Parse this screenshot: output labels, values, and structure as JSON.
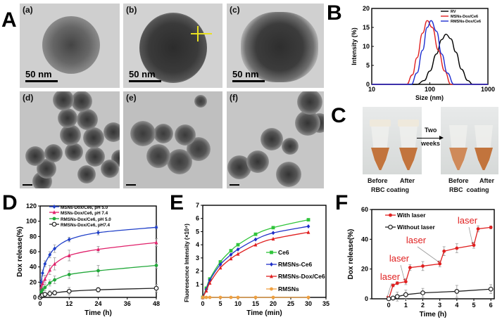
{
  "panels": {
    "A": {
      "label": "A",
      "images": [
        {
          "label": "(a)",
          "scale_bar": "50 nm"
        },
        {
          "label": "(b)",
          "scale_bar": "50 nm"
        },
        {
          "label": "(c)",
          "scale_bar": "50 nm"
        },
        {
          "label": "(d)"
        },
        {
          "label": "(e)"
        },
        {
          "label": "(f)"
        }
      ]
    },
    "B": {
      "label": "B"
    },
    "C": {
      "label": "C",
      "arrow_text_1": "Two",
      "arrow_text_2": "weeks",
      "left": {
        "before": "Before",
        "after": "After",
        "caption": "RBC coating"
      },
      "right": {
        "before": "Before",
        "after": "After",
        "caption": "RBC  coating"
      },
      "liquid_color": "#c2743d"
    },
    "D": {
      "label": "D"
    },
    "E": {
      "label": "E"
    },
    "F": {
      "label": "F"
    }
  },
  "chart_data": [
    {
      "id": "B",
      "type": "line",
      "xscale": "log",
      "xlabel": "Size (nm)",
      "ylabel": "Intensity (%)",
      "xlim": [
        10,
        1000
      ],
      "ylim": [
        0,
        20
      ],
      "xticks": [
        10,
        100,
        1000
      ],
      "yticks": [
        0,
        5,
        10,
        15,
        20
      ],
      "legend": "top-right",
      "series": [
        {
          "name": "RV",
          "color": "#000000",
          "x": [
            60,
            80,
            100,
            130,
            160,
            190,
            230,
            280,
            350,
            450,
            550
          ],
          "y": [
            0,
            1,
            3.5,
            8,
            11.8,
            13.2,
            12,
            8.5,
            4,
            1,
            0
          ]
        },
        {
          "name": "MSNs-Dox/Ce6",
          "color": "#e02020",
          "x": [
            40,
            50,
            60,
            75,
            90,
            110,
            140,
            180,
            230
          ],
          "y": [
            0,
            2.5,
            7,
            13.5,
            16.8,
            15,
            9,
            3.5,
            0
          ]
        },
        {
          "name": "RMSNs-Dox/Ce6",
          "color": "#1f2fd0",
          "x": [
            48,
            60,
            75,
            90,
            105,
            130,
            160,
            200,
            260
          ],
          "y": [
            0,
            3,
            9,
            15,
            16.8,
            14,
            8,
            3,
            0
          ]
        }
      ]
    },
    {
      "id": "D",
      "type": "line",
      "xlabel": "Time (h)",
      "ylabel": "Dox release(%)",
      "xlim": [
        0,
        48
      ],
      "ylim": [
        0,
        120
      ],
      "xticks": [
        0,
        12,
        24,
        36,
        48
      ],
      "yticks": [
        0,
        20,
        40,
        60,
        80,
        100,
        120
      ],
      "legend": "top-left",
      "x": [
        0,
        0.5,
        1,
        2,
        4,
        6,
        12,
        24,
        48
      ],
      "series": [
        {
          "name": "MSNs-Dox/Ce6, pH 5.0",
          "color": "#1f3fc8",
          "marker": "diamond",
          "values": [
            0,
            21,
            32,
            44,
            56,
            64,
            76,
            85,
            92
          ],
          "err": [
            0,
            3,
            4,
            4,
            4,
            5,
            3,
            3,
            2
          ]
        },
        {
          "name": "MSNs-Dox/Ce6, pH 7.4",
          "color": "#e0206a",
          "marker": "triangle",
          "values": [
            0,
            14,
            18,
            24,
            36,
            44,
            55,
            63,
            72
          ],
          "err": [
            0,
            3,
            4,
            5,
            6,
            8,
            7,
            4,
            5
          ]
        },
        {
          "name": "RMSNs-Dox/Ce6, pH 5.0",
          "color": "#22a83a",
          "marker": "circle",
          "values": [
            0,
            7,
            10,
            13,
            19,
            23,
            30,
            35,
            42
          ],
          "err": [
            0,
            2,
            3,
            4,
            4,
            5,
            5,
            7,
            4
          ]
        },
        {
          "name": "RMSNs-Dox/Ce6, pH7.4",
          "color": "#222222",
          "marker": "open-circle",
          "values": [
            0,
            2,
            3,
            4,
            5,
            6,
            8,
            10,
            12
          ],
          "err": [
            0,
            1,
            2,
            2,
            4,
            3,
            5,
            3,
            5
          ]
        }
      ]
    },
    {
      "id": "E",
      "type": "line",
      "xlabel": "Time (min)",
      "ylabel": "Fluoresecnce Intensity (×10⁴)",
      "xlim": [
        0,
        35
      ],
      "ylim": [
        0,
        7
      ],
      "xticks": [
        0,
        5,
        10,
        15,
        20,
        25,
        30,
        35
      ],
      "yticks": [
        1,
        2,
        3,
        4,
        5,
        6,
        7
      ],
      "legend": "center-right",
      "x": [
        0,
        1,
        2,
        5,
        8,
        10,
        15,
        20,
        30
      ],
      "series": [
        {
          "name": "Ce6",
          "color": "#2fc43a",
          "marker": "square",
          "values": [
            0,
            0.7,
            1.4,
            2.7,
            3.55,
            4.0,
            4.8,
            5.3,
            5.9
          ]
        },
        {
          "name": "RMSNs-Ce6",
          "color": "#1f2fc8",
          "marker": "diamond",
          "values": [
            0,
            0.6,
            1.3,
            2.5,
            3.25,
            3.65,
            4.4,
            4.9,
            5.4
          ]
        },
        {
          "name": "RMSNs-Dox/Ce6",
          "color": "#e02020",
          "marker": "triangle",
          "values": [
            0,
            0.5,
            1.1,
            2.25,
            2.95,
            3.3,
            4.0,
            4.45,
            4.95
          ]
        },
        {
          "name": "RMSNs",
          "color": "#f0a040",
          "marker": "circle",
          "values": [
            0,
            0,
            0,
            0,
            0,
            0,
            0,
            0,
            0
          ]
        }
      ]
    },
    {
      "id": "F",
      "type": "line",
      "xlabel": "Time (h)",
      "ylabel": "Dox release(%)",
      "xlim": [
        -1,
        6.2
      ],
      "ylim": [
        0,
        60
      ],
      "xticks": [
        0,
        1,
        2,
        3,
        4,
        5,
        6
      ],
      "yticks": [
        0,
        20,
        40,
        60
      ],
      "legend": "top-left",
      "series": [
        {
          "name": "With laser",
          "color": "#e02020",
          "marker": "circle",
          "x": [
            0,
            0.25,
            0.5,
            1,
            1.25,
            2,
            3,
            3.25,
            4,
            5,
            5.25,
            6
          ],
          "values": [
            0,
            9,
            10.5,
            11.5,
            21,
            22,
            23.5,
            32,
            34,
            36,
            47,
            48
          ],
          "err": [
            0,
            1,
            1,
            2,
            2,
            3,
            2,
            3,
            3,
            2,
            2,
            1
          ]
        },
        {
          "name": "Without laser",
          "color": "#222222",
          "marker": "open-circle",
          "x": [
            0,
            0.25,
            0.5,
            1,
            2,
            4,
            6
          ],
          "values": [
            0,
            0.5,
            1.5,
            2.8,
            4,
            5,
            6.5
          ],
          "err": [
            0,
            1,
            3,
            3,
            3,
            4,
            3
          ]
        }
      ],
      "annotations": [
        {
          "text": "laser",
          "x": 0,
          "y": 0
        },
        {
          "text": "laser",
          "x": 1,
          "y": 11.5
        },
        {
          "text": "laser",
          "x": 3,
          "y": 23.5
        },
        {
          "text": "laser",
          "x": 5,
          "y": 36
        }
      ]
    }
  ]
}
